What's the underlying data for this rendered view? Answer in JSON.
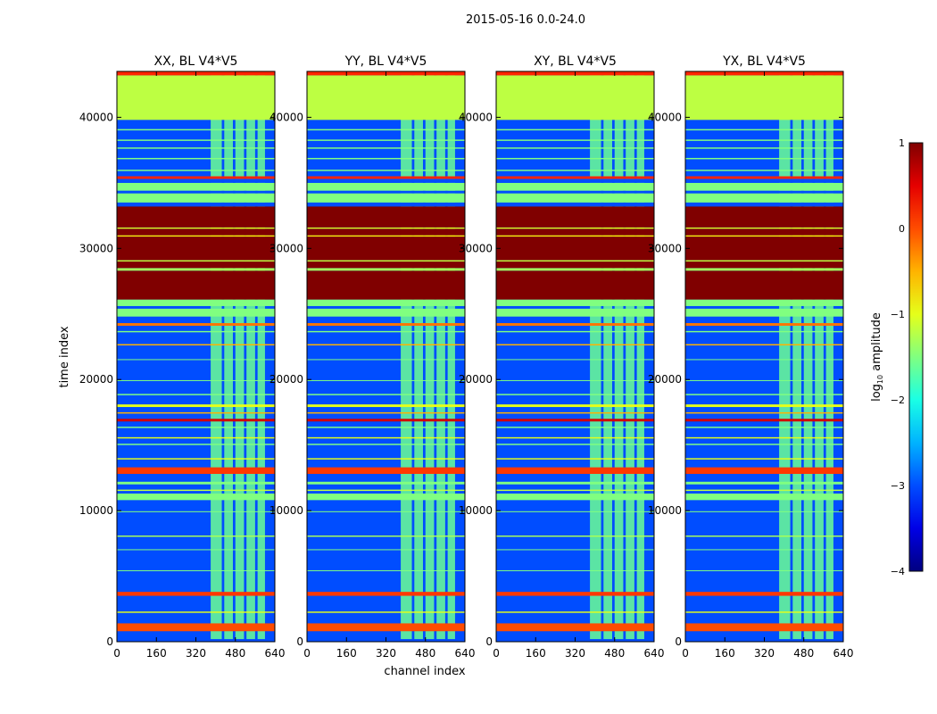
{
  "figure_title": "2015-05-16 0.0-24.0",
  "chart_data": {
    "type": "heatmap",
    "title": "2015-05-16 0.0-24.0",
    "xlabel": "channel index",
    "ylabel": "time index",
    "xlim": [
      0,
      640
    ],
    "ylim": [
      0,
      43500
    ],
    "xticks": [
      0,
      160,
      320,
      480,
      640
    ],
    "yticks": [
      0,
      10000,
      20000,
      30000,
      40000
    ],
    "panels": [
      {
        "name": "XX, BL V4*V5"
      },
      {
        "name": "YY, BL V4*V5"
      },
      {
        "name": "XY, BL V4*V5"
      },
      {
        "name": "YX, BL V4*V5"
      }
    ],
    "colorbar": {
      "label": "log10 amplitude",
      "label_main": "log",
      "label_sub": "10",
      "label_rest": " amplitude",
      "vmin": -4,
      "vmax": 1,
      "ticks": [
        {
          "value": 1,
          "label": "1"
        },
        {
          "value": 0,
          "label": "0"
        },
        {
          "value": -1,
          "label": "−1"
        },
        {
          "value": -2,
          "label": "−2"
        },
        {
          "value": -3,
          "label": "−3"
        },
        {
          "value": -4,
          "label": "−4"
        }
      ],
      "colormap": "jet"
    },
    "bands": [
      {
        "from": 0,
        "to": 200,
        "value": -3
      },
      {
        "from": 800,
        "to": 1400,
        "value": 0
      },
      {
        "from": 2200,
        "to": 2300,
        "value": -1
      },
      {
        "from": 3500,
        "to": 3800,
        "value": 0.1
      },
      {
        "from": 5400,
        "to": 5450,
        "value": -1.5
      },
      {
        "from": 7000,
        "to": 7050,
        "value": -1.5
      },
      {
        "from": 8000,
        "to": 8100,
        "value": -1.3
      },
      {
        "from": 9900,
        "to": 9950,
        "value": -1.5
      },
      {
        "from": 10800,
        "to": 11300,
        "value": -1.5
      },
      {
        "from": 11500,
        "to": 11600,
        "value": -1.2
      },
      {
        "from": 12000,
        "to": 12200,
        "value": -1.5
      },
      {
        "from": 12800,
        "to": 13300,
        "value": 0.1
      },
      {
        "from": 13900,
        "to": 14000,
        "value": -1.0
      },
      {
        "from": 15000,
        "to": 15100,
        "value": -1.5
      },
      {
        "from": 15500,
        "to": 15600,
        "value": -1.0
      },
      {
        "from": 16300,
        "to": 16400,
        "value": -1.5
      },
      {
        "from": 16800,
        "to": 17000,
        "value": 0.6
      },
      {
        "from": 17400,
        "to": 17500,
        "value": -0.5
      },
      {
        "from": 17900,
        "to": 18100,
        "value": -1.0
      },
      {
        "from": 18800,
        "to": 18900,
        "value": -1.5
      },
      {
        "from": 19900,
        "to": 19950,
        "value": -1.5
      },
      {
        "from": 21500,
        "to": 21550,
        "value": -1.5
      },
      {
        "from": 22600,
        "to": 22700,
        "value": -0.5
      },
      {
        "from": 23600,
        "to": 23700,
        "value": -1.5
      },
      {
        "from": 24100,
        "to": 24300,
        "value": -0.2
      },
      {
        "from": 24800,
        "to": 25400,
        "value": -1.5
      },
      {
        "from": 25600,
        "to": 26100,
        "value": -1.5
      },
      {
        "from": 26100,
        "to": 28300,
        "value": 1
      },
      {
        "from": 28300,
        "to": 28500,
        "value": -1.3
      },
      {
        "from": 28500,
        "to": 29000,
        "value": 1
      },
      {
        "from": 29000,
        "to": 29100,
        "value": -1.2
      },
      {
        "from": 29100,
        "to": 30900,
        "value": 1
      },
      {
        "from": 30900,
        "to": 31000,
        "value": -0.8
      },
      {
        "from": 31000,
        "to": 31500,
        "value": 1
      },
      {
        "from": 31500,
        "to": 31600,
        "value": -1.0
      },
      {
        "from": 31600,
        "to": 33200,
        "value": 1
      },
      {
        "from": 33200,
        "to": 33500,
        "value": -3
      },
      {
        "from": 33500,
        "to": 34200,
        "value": -1.5
      },
      {
        "from": 34200,
        "to": 34400,
        "value": -3
      },
      {
        "from": 34400,
        "to": 35000,
        "value": -1.5
      },
      {
        "from": 35000,
        "to": 35300,
        "value": -3
      },
      {
        "from": 35300,
        "to": 35500,
        "value": 0.2
      },
      {
        "from": 35900,
        "to": 36000,
        "value": -1.5
      },
      {
        "from": 36800,
        "to": 36900,
        "value": -1.5
      },
      {
        "from": 37600,
        "to": 37700,
        "value": -1.5
      },
      {
        "from": 38200,
        "to": 38300,
        "value": -1.5
      },
      {
        "from": 39000,
        "to": 39100,
        "value": -1.5
      },
      {
        "from": 39800,
        "to": 43200,
        "value": -1.2
      },
      {
        "from": 43200,
        "to": 43500,
        "value": 0.2
      }
    ],
    "bright_channels": [
      {
        "from": 380,
        "to": 425
      },
      {
        "from": 435,
        "to": 470
      },
      {
        "from": 480,
        "to": 515
      },
      {
        "from": 525,
        "to": 560
      },
      {
        "from": 570,
        "to": 600
      }
    ]
  }
}
